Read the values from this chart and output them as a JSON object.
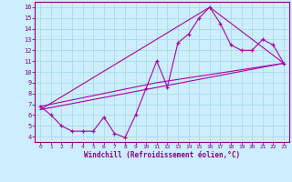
{
  "xlabel": "Windchill (Refroidissement éolien,°C)",
  "bg_color": "#cceeff",
  "grid_color": "#aadddd",
  "line_color": "#aa00aa",
  "xlim": [
    -0.5,
    23.5
  ],
  "ylim": [
    3.5,
    16.5
  ],
  "xticks": [
    0,
    1,
    2,
    3,
    4,
    5,
    6,
    7,
    8,
    9,
    10,
    11,
    12,
    13,
    14,
    15,
    16,
    17,
    18,
    19,
    20,
    21,
    22,
    23
  ],
  "yticks": [
    4,
    5,
    6,
    7,
    8,
    9,
    10,
    11,
    12,
    13,
    14,
    15,
    16
  ],
  "series1_x": [
    0,
    1,
    2,
    3,
    4,
    5,
    6,
    7,
    8,
    9,
    10,
    11,
    12,
    13,
    14,
    15,
    16,
    17,
    18,
    19,
    20,
    21,
    22,
    23
  ],
  "series1_y": [
    6.8,
    6.0,
    5.0,
    4.5,
    4.5,
    4.5,
    5.8,
    4.3,
    3.9,
    6.0,
    8.5,
    11.0,
    8.6,
    12.7,
    13.5,
    15.0,
    16.0,
    14.5,
    12.5,
    12.0,
    12.0,
    13.0,
    12.5,
    10.8
  ],
  "series2_x": [
    0,
    23
  ],
  "series2_y": [
    6.5,
    10.8
  ],
  "series3_x": [
    0,
    11,
    23
  ],
  "series3_y": [
    6.8,
    9.0,
    10.8
  ],
  "series4_x": [
    0,
    16,
    23
  ],
  "series4_y": [
    6.5,
    16.0,
    10.8
  ]
}
